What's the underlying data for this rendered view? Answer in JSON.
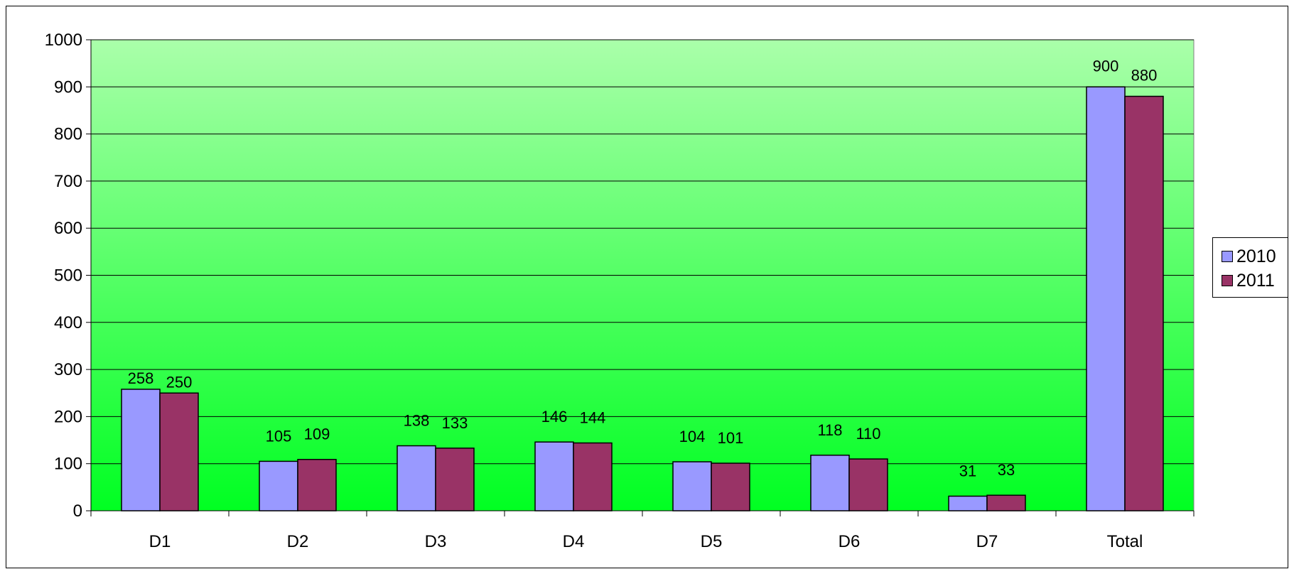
{
  "chart_data": {
    "type": "bar",
    "categories": [
      "D1",
      "D2",
      "D3",
      "D4",
      "D5",
      "D6",
      "D7",
      "Total"
    ],
    "series": [
      {
        "name": "2010",
        "color": "#9999ff",
        "values": [
          258,
          105,
          138,
          146,
          104,
          118,
          31,
          900
        ],
        "labels": [
          "258",
          "105",
          "138",
          "146",
          "104",
          "118",
          "31",
          "900"
        ]
      },
      {
        "name": "2011",
        "color": "#993366",
        "values": [
          250,
          109,
          133,
          144,
          101,
          110,
          33,
          880
        ],
        "labels": [
          "250",
          "109",
          "133",
          "144",
          "101",
          "110",
          "33",
          "880"
        ]
      }
    ],
    "yticks": [
      "0",
      "100",
      "200",
      "300",
      "400",
      "500",
      "600",
      "700",
      "800",
      "900",
      "1000"
    ],
    "ylim": [
      0,
      1000
    ],
    "grid": true,
    "legend_position": "right",
    "plot_background": {
      "top_color": "#aaffaa",
      "bottom_color": "#00ff22"
    }
  }
}
